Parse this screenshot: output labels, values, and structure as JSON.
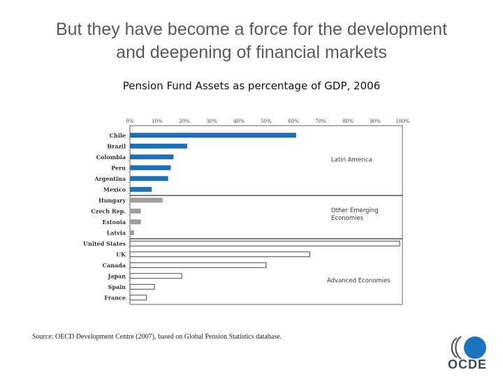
{
  "slide": {
    "title_line1": "But they have become a force for the development",
    "title_line2": "and deepening of financial markets",
    "source": "Source: OECD Development Centre (2007), based on Global Pension Statistics database.",
    "logo_text": "OCDE"
  },
  "chart_data": {
    "type": "bar",
    "orientation": "horizontal",
    "title": "Pension Fund Assets as percentage of GDP, 2006",
    "xlabel": "",
    "ylabel": "",
    "xlim": [
      0,
      100
    ],
    "x_ticks": [
      "0%",
      "10%",
      "20%",
      "30%",
      "40%",
      "50%",
      "60%",
      "70%",
      "80%",
      "90%",
      "100%"
    ],
    "categories": [
      "Chile",
      "Brazil",
      "Colombia",
      "Peru",
      "Argentina",
      "Mexico",
      "Hungary",
      "Czech Rep.",
      "Estonia",
      "Latvia",
      "United States",
      "UK",
      "Canada",
      "Japan",
      "Spain",
      "France"
    ],
    "values": [
      61,
      21,
      16,
      15,
      14,
      8,
      12,
      4,
      4,
      1.5,
      99,
      66,
      50,
      19,
      9,
      6
    ],
    "groups": [
      {
        "name": "Latin America",
        "count": 6,
        "color": "#1f6fb5",
        "style": "solid"
      },
      {
        "name": "Other Emerging Economies",
        "count": 4,
        "color": "#9e9e9e",
        "style": "solid"
      },
      {
        "name": "Advanced Economies",
        "count": 6,
        "color": "#ffffff",
        "style": "outline"
      }
    ],
    "grid": false,
    "colors": {
      "latin": "#1f6fb5",
      "emerging": "#9e9e9e",
      "advanced_fill": "#ffffff",
      "outline": "#333333",
      "logo_blue": "#1e73be"
    }
  }
}
